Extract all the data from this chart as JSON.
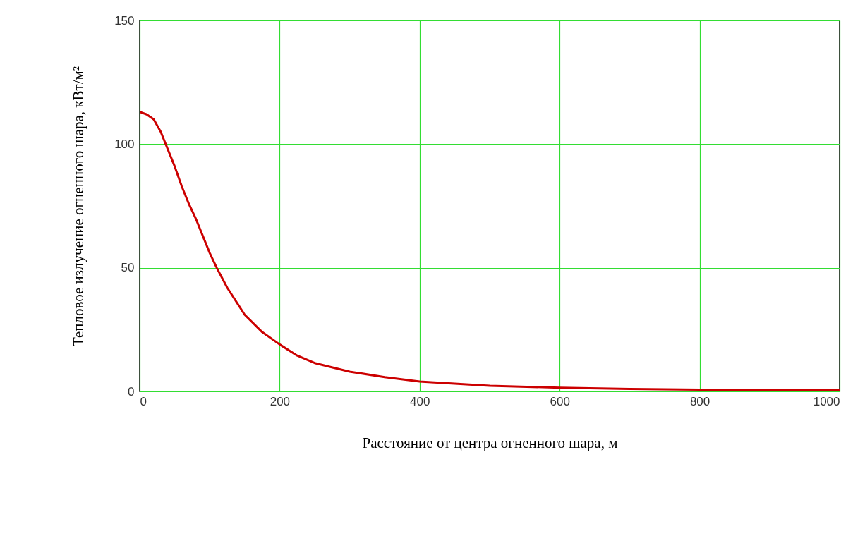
{
  "chart_data": {
    "type": "line",
    "xlabel": "Расстояние от центра огненного шара, м",
    "ylabel": "Тепловое излучение огненного шара, кВт/м²",
    "x": [
      0,
      10,
      20,
      30,
      40,
      50,
      60,
      70,
      80,
      90,
      100,
      110,
      125,
      150,
      175,
      200,
      225,
      250,
      300,
      350,
      400,
      500,
      600,
      700,
      800,
      900,
      1000
    ],
    "series": [
      {
        "color": "#cc0000",
        "values": [
          113,
          112,
          110,
          105,
          98,
          91,
          83,
          76,
          70,
          63,
          56,
          50,
          42,
          31,
          24,
          19,
          14.5,
          11.5,
          8,
          5.8,
          4,
          2.3,
          1.5,
          1,
          0.7,
          0.6,
          0.5
        ]
      }
    ],
    "xlim": [
      0,
      1000
    ],
    "ylim": [
      0,
      150
    ],
    "xticks": [
      0,
      200,
      400,
      600,
      800,
      1000
    ],
    "yticks": [
      0,
      50,
      100,
      150
    ],
    "grid": true,
    "marker": "none",
    "line_style": "solid"
  }
}
